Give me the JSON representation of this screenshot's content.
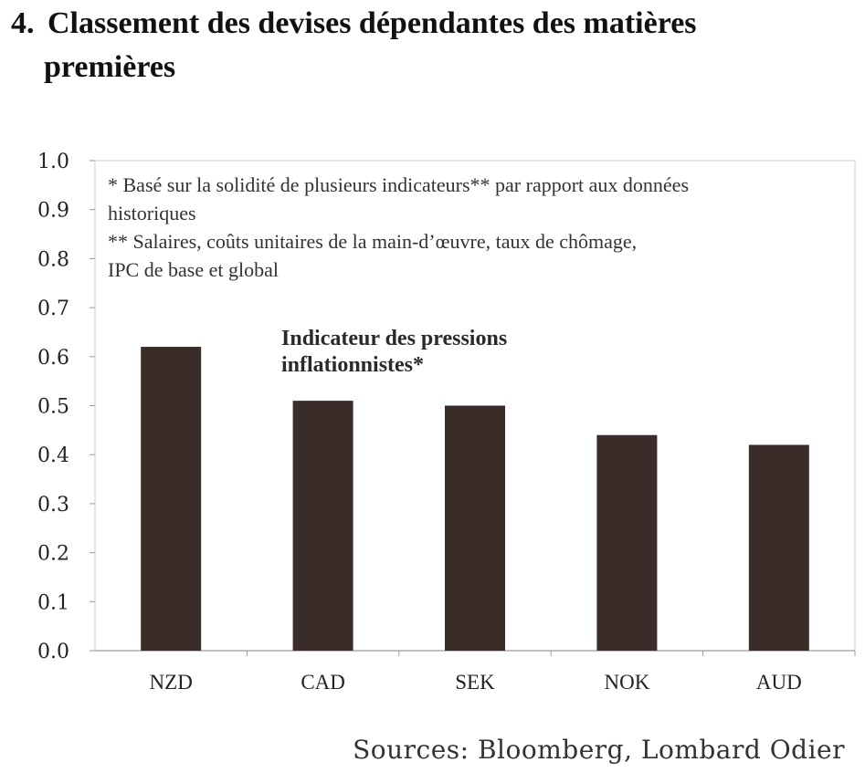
{
  "title": {
    "number": "4.",
    "line1": "Classement des devises dépendantes des matières",
    "line2": "premières"
  },
  "chart_data": {
    "type": "bar",
    "title": "Indicateur des pressions inflationnistes*",
    "title_lines": [
      "Indicateur des pressions",
      "inflationnistes*"
    ],
    "categories": [
      "NZD",
      "CAD",
      "SEK",
      "NOK",
      "AUD"
    ],
    "values": [
      0.62,
      0.51,
      0.5,
      0.44,
      0.42
    ],
    "ylim": [
      0.0,
      1.0
    ],
    "yticks": [
      "0.0",
      "0.1",
      "0.2",
      "0.3",
      "0.4",
      "0.5",
      "0.6",
      "0.7",
      "0.8",
      "0.9",
      "1.0"
    ],
    "xlabel": "",
    "ylabel": "",
    "grid": false,
    "bar_color": "#3a2d29",
    "notes": [
      "* Basé sur la solidité de plusieurs indicateurs** par rapport aux données",
      "historiques",
      "** Salaires, coûts unitaires de la main-d’œuvre, taux de chômage,",
      "IPC de base et global"
    ]
  },
  "source": "Sources: Bloomberg, Lombard Odier"
}
